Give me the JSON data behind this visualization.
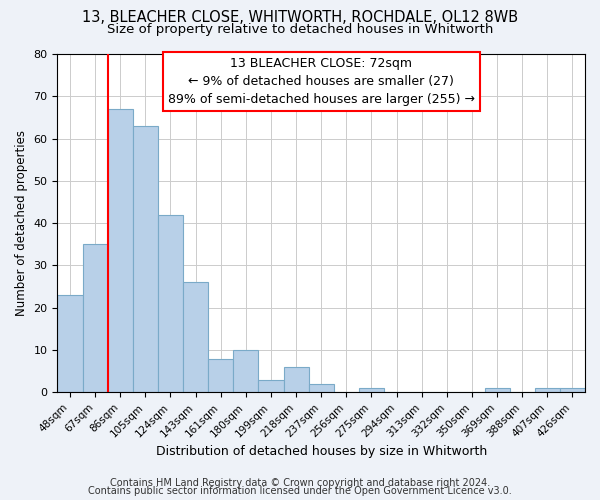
{
  "title": "13, BLEACHER CLOSE, WHITWORTH, ROCHDALE, OL12 8WB",
  "subtitle": "Size of property relative to detached houses in Whitworth",
  "xlabel": "Distribution of detached houses by size in Whitworth",
  "ylabel": "Number of detached properties",
  "bar_labels": [
    "48sqm",
    "67sqm",
    "86sqm",
    "105sqm",
    "124sqm",
    "143sqm",
    "161sqm",
    "180sqm",
    "199sqm",
    "218sqm",
    "237sqm",
    "256sqm",
    "275sqm",
    "294sqm",
    "313sqm",
    "332sqm",
    "350sqm",
    "369sqm",
    "388sqm",
    "407sqm",
    "426sqm"
  ],
  "bar_values": [
    23,
    35,
    67,
    63,
    42,
    26,
    8,
    10,
    3,
    6,
    2,
    0,
    1,
    0,
    0,
    0,
    0,
    1,
    0,
    1,
    1
  ],
  "bar_color": "#b8d0e8",
  "bar_edge_color": "#7aaac8",
  "ylim": [
    0,
    80
  ],
  "yticks": [
    0,
    10,
    20,
    30,
    40,
    50,
    60,
    70,
    80
  ],
  "annotation_line1": "13 BLEACHER CLOSE: 72sqm",
  "annotation_line2": "← 9% of detached houses are smaller (27)",
  "annotation_line3": "89% of semi-detached houses are larger (255) →",
  "footer_line1": "Contains HM Land Registry data © Crown copyright and database right 2024.",
  "footer_line2": "Contains public sector information licensed under the Open Government Licence v3.0.",
  "background_color": "#eef2f8",
  "plot_background_color": "#ffffff",
  "grid_color": "#cccccc",
  "title_fontsize": 10.5,
  "subtitle_fontsize": 9.5,
  "annotation_fontsize": 9,
  "footer_fontsize": 7,
  "red_line_index": 1.5
}
